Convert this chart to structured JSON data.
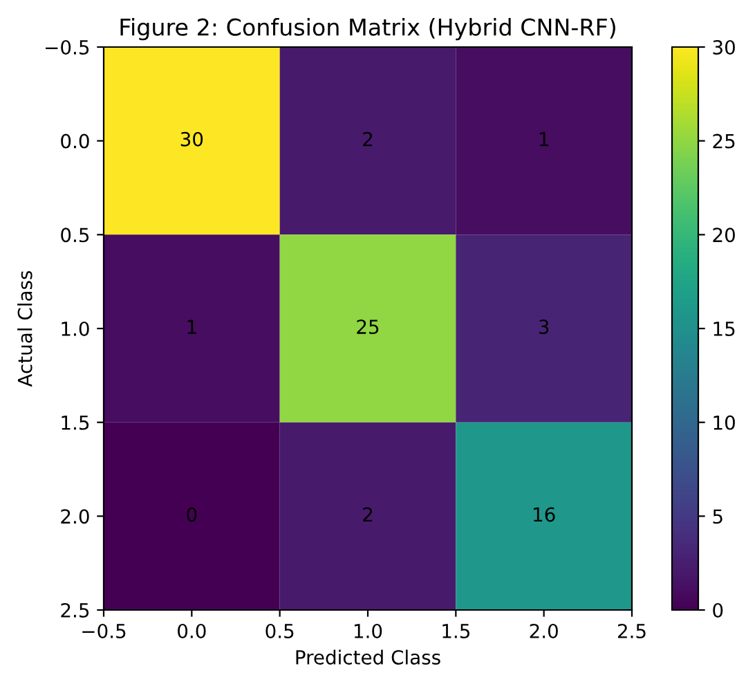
{
  "chart_data": {
    "type": "heatmap",
    "title": "Figure 2: Confusion Matrix (Hybrid CNN-RF)",
    "xlabel": "Predicted Class",
    "ylabel": "Actual Class",
    "x": [
      0,
      1,
      2
    ],
    "cells": [
      [
        30,
        2,
        1
      ],
      [
        1,
        25,
        3
      ],
      [
        0,
        2,
        16
      ]
    ],
    "data_labels": true,
    "xlim": [
      -0.5,
      2.5
    ],
    "xticks": [
      {
        "value": -0.5,
        "label": "−0.5"
      },
      {
        "value": 0,
        "label": "0.0"
      },
      {
        "value": 0.5,
        "label": "0.5"
      },
      {
        "value": 1,
        "label": "1.0"
      },
      {
        "value": 1.5,
        "label": "1.5"
      },
      {
        "value": 2,
        "label": "2.0"
      },
      {
        "value": 2.5,
        "label": "2.5"
      }
    ],
    "ylim": [
      2.5,
      -0.5
    ],
    "yticks": [
      {
        "value": -0.5,
        "label": "−0.5"
      },
      {
        "value": 0,
        "label": "0.0"
      },
      {
        "value": 0.5,
        "label": "0.5"
      },
      {
        "value": 1,
        "label": "1.0"
      },
      {
        "value": 1.5,
        "label": "1.5"
      },
      {
        "value": 2,
        "label": "2.0"
      },
      {
        "value": 2.5,
        "label": "2.5"
      }
    ],
    "clim": [
      0,
      30
    ],
    "cticks": [
      0,
      5,
      10,
      15,
      20,
      25,
      30
    ],
    "grid": false
  }
}
